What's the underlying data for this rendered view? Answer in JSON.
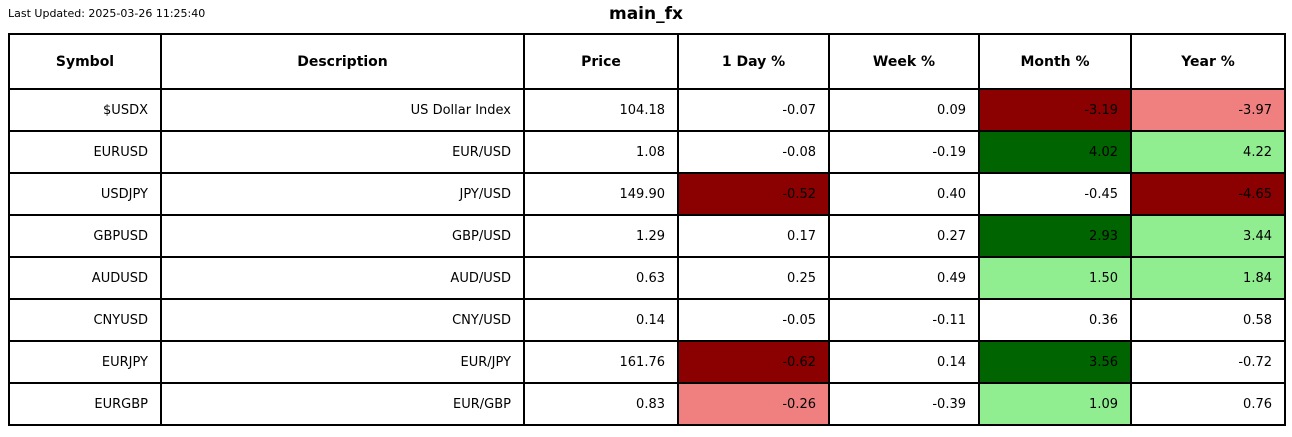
{
  "header": {
    "last_updated": "Last Updated: 2025-03-26 11:25:40"
  },
  "colors": {
    "white": "#ffffff",
    "dark_red": "#8b0000",
    "light_red": "#f08080",
    "dark_green": "#006400",
    "light_green": "#90ee90",
    "border": "#000000",
    "text": "#000000"
  },
  "chart_data": {
    "type": "table",
    "title": "main_fx",
    "columns": [
      "Symbol",
      "Description",
      "Price",
      "1 Day %",
      "Week %",
      "Month %",
      "Year %"
    ],
    "rows": [
      {
        "symbol": "$USDX",
        "description": "US Dollar Index",
        "price": 104.18,
        "pct": [
          {
            "value": -0.07,
            "bg": "white"
          },
          {
            "value": 0.09,
            "bg": "white"
          },
          {
            "value": -3.19,
            "bg": "dark_red"
          },
          {
            "value": -3.97,
            "bg": "light_red"
          }
        ]
      },
      {
        "symbol": "EURUSD",
        "description": "EUR/USD",
        "price": 1.08,
        "pct": [
          {
            "value": -0.08,
            "bg": "white"
          },
          {
            "value": -0.19,
            "bg": "white"
          },
          {
            "value": 4.02,
            "bg": "dark_green"
          },
          {
            "value": 4.22,
            "bg": "light_green"
          }
        ]
      },
      {
        "symbol": "USDJPY",
        "description": "JPY/USD",
        "price": 149.9,
        "pct": [
          {
            "value": -0.52,
            "bg": "dark_red"
          },
          {
            "value": 0.4,
            "bg": "white"
          },
          {
            "value": -0.45,
            "bg": "white"
          },
          {
            "value": -4.65,
            "bg": "dark_red"
          }
        ]
      },
      {
        "symbol": "GBPUSD",
        "description": "GBP/USD",
        "price": 1.29,
        "pct": [
          {
            "value": 0.17,
            "bg": "white"
          },
          {
            "value": 0.27,
            "bg": "white"
          },
          {
            "value": 2.93,
            "bg": "dark_green"
          },
          {
            "value": 3.44,
            "bg": "light_green"
          }
        ]
      },
      {
        "symbol": "AUDUSD",
        "description": "AUD/USD",
        "price": 0.63,
        "pct": [
          {
            "value": 0.25,
            "bg": "white"
          },
          {
            "value": 0.49,
            "bg": "white"
          },
          {
            "value": 1.5,
            "bg": "light_green"
          },
          {
            "value": 1.84,
            "bg": "light_green"
          }
        ]
      },
      {
        "symbol": "CNYUSD",
        "description": "CNY/USD",
        "price": 0.14,
        "pct": [
          {
            "value": -0.05,
            "bg": "white"
          },
          {
            "value": -0.11,
            "bg": "white"
          },
          {
            "value": 0.36,
            "bg": "white"
          },
          {
            "value": 0.58,
            "bg": "white"
          }
        ]
      },
      {
        "symbol": "EURJPY",
        "description": "EUR/JPY",
        "price": 161.76,
        "pct": [
          {
            "value": -0.62,
            "bg": "dark_red"
          },
          {
            "value": 0.14,
            "bg": "white"
          },
          {
            "value": 3.56,
            "bg": "dark_green"
          },
          {
            "value": -0.72,
            "bg": "white"
          }
        ]
      },
      {
        "symbol": "EURGBP",
        "description": "EUR/GBP",
        "price": 0.83,
        "pct": [
          {
            "value": -0.26,
            "bg": "light_red"
          },
          {
            "value": -0.39,
            "bg": "white"
          },
          {
            "value": 1.09,
            "bg": "light_green"
          },
          {
            "value": 0.76,
            "bg": "white"
          }
        ]
      }
    ]
  }
}
